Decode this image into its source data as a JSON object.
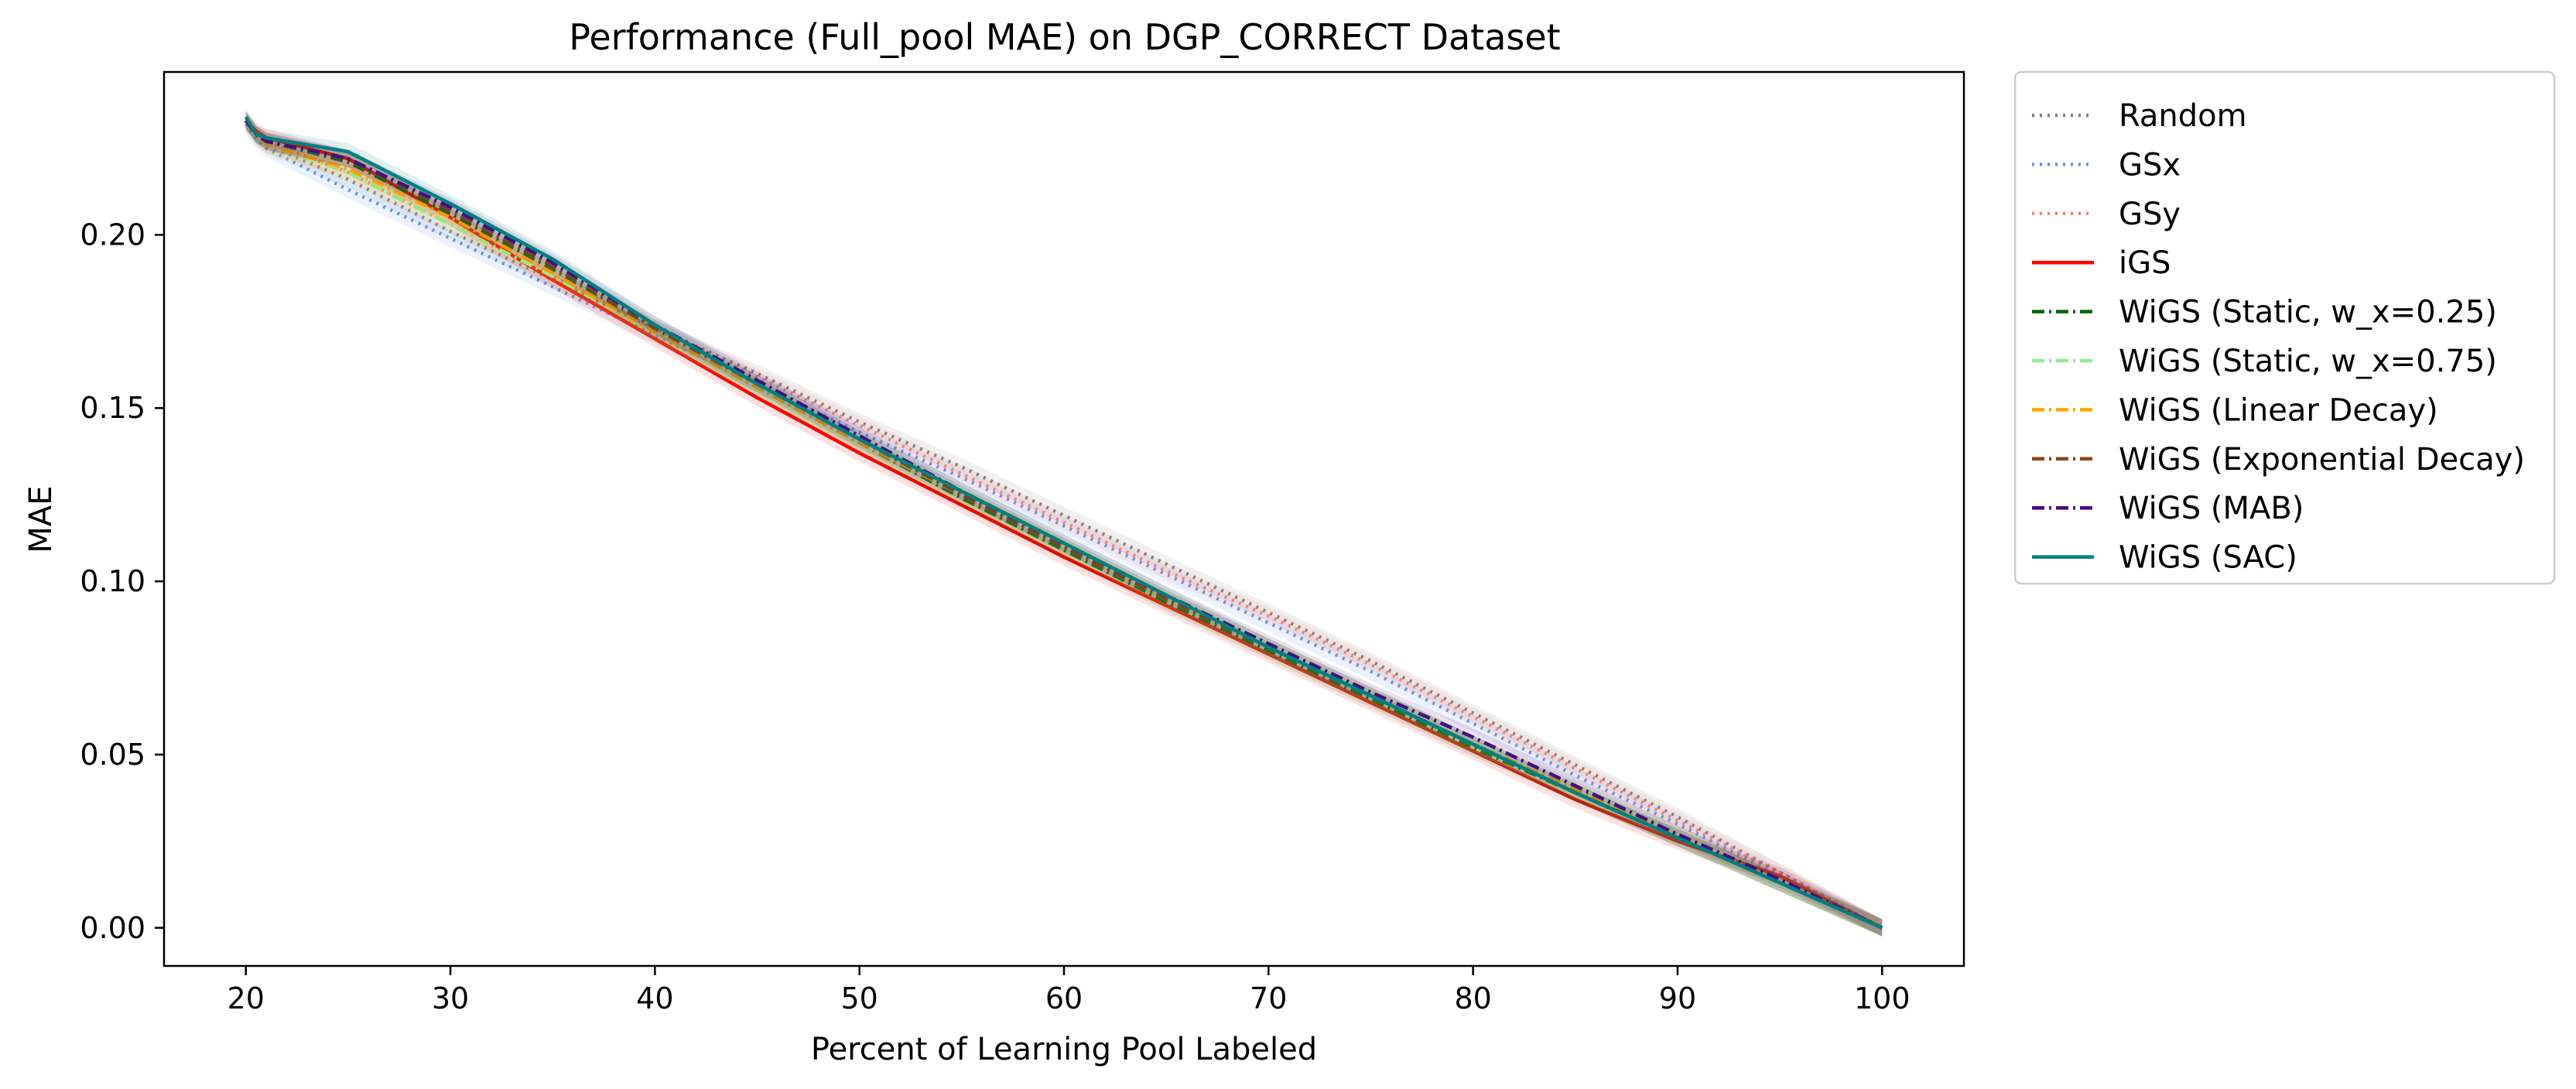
{
  "chart_data": {
    "type": "line",
    "title": "Performance (Full_pool MAE) on DGP_CORRECT Dataset",
    "xlabel": "Percent of Learning Pool Labeled",
    "ylabel": "MAE",
    "xlim": [
      16,
      104
    ],
    "ylim": [
      -0.011,
      0.247
    ],
    "x_ticks": [
      20,
      30,
      40,
      50,
      60,
      70,
      80,
      90,
      100
    ],
    "y_ticks": [
      0.0,
      0.05,
      0.1,
      0.15,
      0.2
    ],
    "x_tick_labels": [
      "20",
      "30",
      "40",
      "50",
      "60",
      "70",
      "80",
      "90",
      "100"
    ],
    "y_tick_labels": [
      "0.00",
      "0.05",
      "0.10",
      "0.15",
      "0.20"
    ],
    "grid": false,
    "legend_position": "outside-top-right",
    "series": [
      {
        "name": "Random",
        "color": "#808080",
        "style": "dotted",
        "x": [
          20,
          20.5,
          21,
          25,
          30,
          35,
          40,
          45,
          50,
          55,
          60,
          65,
          70,
          75,
          80,
          85,
          90,
          95,
          100
        ],
        "y": [
          0.232,
          0.228,
          0.226,
          0.216,
          0.201,
          0.187,
          0.173,
          0.16,
          0.146,
          0.133,
          0.119,
          0.105,
          0.091,
          0.077,
          0.062,
          0.047,
          0.032,
          0.016,
          0.0
        ]
      },
      {
        "name": "GSx",
        "color": "#6495ed",
        "style": "dotted",
        "x": [
          20,
          20.5,
          21,
          25,
          30,
          35,
          40,
          45,
          50,
          55,
          60,
          65,
          70,
          75,
          80,
          85,
          90,
          95,
          100
        ],
        "y": [
          0.232,
          0.228,
          0.225,
          0.213,
          0.199,
          0.185,
          0.171,
          0.157,
          0.143,
          0.13,
          0.116,
          0.102,
          0.088,
          0.074,
          0.059,
          0.044,
          0.03,
          0.015,
          0.0
        ]
      },
      {
        "name": "GSy",
        "color": "#fa8072",
        "style": "dotted",
        "x": [
          20,
          20.5,
          21,
          25,
          30,
          35,
          40,
          45,
          50,
          55,
          60,
          65,
          70,
          75,
          80,
          85,
          90,
          95,
          100
        ],
        "y": [
          0.233,
          0.229,
          0.227,
          0.218,
          0.203,
          0.188,
          0.173,
          0.159,
          0.145,
          0.131,
          0.117,
          0.103,
          0.09,
          0.076,
          0.061,
          0.046,
          0.031,
          0.016,
          0.0
        ]
      },
      {
        "name": "iGS",
        "color": "#ff0000",
        "style": "solid",
        "x": [
          20,
          20.5,
          21,
          25,
          30,
          35,
          40,
          45,
          50,
          55,
          60,
          65,
          70,
          75,
          80,
          85,
          90,
          92,
          95,
          97,
          100
        ],
        "y": [
          0.233,
          0.23,
          0.228,
          0.222,
          0.205,
          0.187,
          0.17,
          0.153,
          0.137,
          0.122,
          0.107,
          0.093,
          0.079,
          0.065,
          0.051,
          0.037,
          0.025,
          0.021,
          0.015,
          0.009,
          0.0
        ]
      },
      {
        "name": "WiGS (Static, w_x=0.25)",
        "color": "#006400",
        "style": "dashdot",
        "x": [
          20,
          20.5,
          21,
          25,
          30,
          35,
          40,
          45,
          50,
          55,
          60,
          65,
          70,
          75,
          80,
          85,
          90,
          95,
          100
        ],
        "y": [
          0.233,
          0.229,
          0.227,
          0.221,
          0.206,
          0.19,
          0.172,
          0.156,
          0.14,
          0.124,
          0.109,
          0.094,
          0.08,
          0.066,
          0.052,
          0.039,
          0.026,
          0.013,
          0.0
        ]
      },
      {
        "name": "WiGS (Static, w_x=0.75)",
        "color": "#90ee90",
        "style": "dashdot",
        "x": [
          20,
          20.5,
          21,
          25,
          30,
          35,
          40,
          45,
          50,
          55,
          60,
          65,
          70,
          75,
          80,
          85,
          90,
          95,
          100
        ],
        "y": [
          0.233,
          0.229,
          0.226,
          0.218,
          0.203,
          0.188,
          0.172,
          0.156,
          0.14,
          0.125,
          0.11,
          0.095,
          0.081,
          0.067,
          0.053,
          0.04,
          0.027,
          0.013,
          0.0
        ]
      },
      {
        "name": "WiGS (Linear Decay)",
        "color": "#ffa500",
        "style": "dashdot",
        "x": [
          20,
          20.5,
          21,
          25,
          30,
          35,
          40,
          45,
          50,
          55,
          60,
          65,
          70,
          75,
          80,
          85,
          90,
          95,
          100
        ],
        "y": [
          0.233,
          0.229,
          0.226,
          0.219,
          0.205,
          0.189,
          0.172,
          0.156,
          0.14,
          0.125,
          0.11,
          0.095,
          0.081,
          0.067,
          0.053,
          0.04,
          0.027,
          0.013,
          0.0
        ]
      },
      {
        "name": "WiGS (Exponential Decay)",
        "color": "#8b4513",
        "style": "dashdot",
        "x": [
          20,
          20.5,
          21,
          25,
          30,
          35,
          40,
          45,
          50,
          55,
          60,
          65,
          70,
          75,
          80,
          85,
          90,
          95,
          100
        ],
        "y": [
          0.233,
          0.229,
          0.227,
          0.222,
          0.207,
          0.191,
          0.173,
          0.157,
          0.141,
          0.125,
          0.11,
          0.095,
          0.081,
          0.067,
          0.053,
          0.039,
          0.026,
          0.013,
          0.0
        ]
      },
      {
        "name": "WiGS (MAB)",
        "color": "#4b0082",
        "style": "dashdot",
        "x": [
          20,
          20.5,
          21,
          25,
          30,
          35,
          40,
          45,
          50,
          55,
          60,
          65,
          70,
          75,
          80,
          85,
          90,
          95,
          100
        ],
        "y": [
          0.233,
          0.229,
          0.227,
          0.222,
          0.208,
          0.192,
          0.174,
          0.158,
          0.142,
          0.126,
          0.111,
          0.096,
          0.082,
          0.068,
          0.055,
          0.041,
          0.027,
          0.014,
          0.0
        ]
      },
      {
        "name": "WiGS (SAC)",
        "color": "#008080",
        "style": "solid",
        "x": [
          20,
          20.5,
          21,
          25,
          30,
          35,
          40,
          45,
          50,
          55,
          60,
          65,
          70,
          75,
          80,
          85,
          90,
          95,
          100
        ],
        "y": [
          0.234,
          0.229,
          0.228,
          0.224,
          0.209,
          0.193,
          0.174,
          0.157,
          0.141,
          0.126,
          0.111,
          0.096,
          0.081,
          0.067,
          0.053,
          0.039,
          0.026,
          0.013,
          0.0
        ]
      }
    ]
  }
}
